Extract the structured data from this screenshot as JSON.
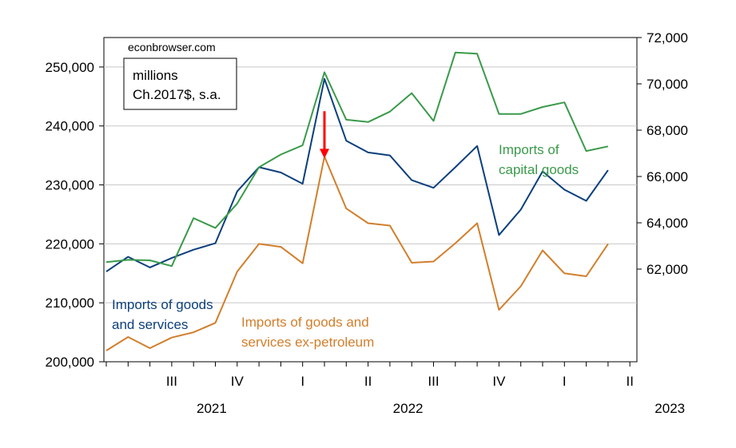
{
  "chart_data": {
    "type": "line",
    "source_note": "econbrowser.com",
    "units_box": [
      "millions",
      "Ch.2017$, s.a."
    ],
    "x": [
      "2021-05",
      "2021-06",
      "2021-07",
      "2021-08",
      "2021-09",
      "2021-10",
      "2021-11",
      "2021-12",
      "2022-01",
      "2022-02",
      "2022-03",
      "2022-04",
      "2022-05",
      "2022-06",
      "2022-07",
      "2022-08",
      "2022-09",
      "2022-10",
      "2022-11",
      "2022-12",
      "2023-01",
      "2023-02",
      "2023-03",
      "2023-04"
    ],
    "quarter_ticks": [
      {
        "label": "III",
        "month": "2021-08"
      },
      {
        "label": "IV",
        "month": "2021-11"
      },
      {
        "label": "I",
        "month": "2022-02"
      },
      {
        "label": "II",
        "month": "2022-05"
      },
      {
        "label": "III",
        "month": "2022-08"
      },
      {
        "label": "IV",
        "month": "2022-11"
      },
      {
        "label": "I",
        "month": "2023-02"
      },
      {
        "label": "II",
        "month": "2023-05"
      }
    ],
    "year_labels": [
      {
        "label": "2021",
        "month": "2021-08"
      },
      {
        "label": "2022",
        "month": "2022-05"
      },
      {
        "label": "2023",
        "month": "2023-05"
      }
    ],
    "left_axis": {
      "min": 200000,
      "max": 255000,
      "ticks": [
        "200,000",
        "210,000",
        "220,000",
        "230,000",
        "240,000",
        "250,000"
      ],
      "tick_values": [
        200000,
        210000,
        220000,
        230000,
        240000,
        250000
      ]
    },
    "right_axis": {
      "min": 58000,
      "max": 72000,
      "ticks": [
        "62,000",
        "64,000",
        "66,000",
        "68,000",
        "70,000",
        "72,000"
      ],
      "tick_values": [
        62000,
        64000,
        66000,
        68000,
        70000,
        72000
      ]
    },
    "series": [
      {
        "name": "Imports of goods and services",
        "label_lines": [
          "Imports of goods",
          "and services"
        ],
        "axis": "left",
        "color": "#0b3f7c",
        "values": [
          215300,
          217800,
          216000,
          217600,
          219000,
          220100,
          228900,
          233000,
          232100,
          230200,
          248000,
          237500,
          235500,
          235000,
          230800,
          229500,
          233000,
          236600,
          221500,
          225800,
          232300,
          229200,
          227300,
          232500
        ]
      },
      {
        "name": "Imports of goods and services ex-petroleum",
        "label_lines": [
          "Imports of goods and",
          "services ex-petroleum"
        ],
        "axis": "left",
        "color": "#d17f2c",
        "values": [
          201900,
          204200,
          202300,
          204100,
          205000,
          206600,
          215300,
          220000,
          219500,
          216700,
          234800,
          226000,
          223500,
          223100,
          216800,
          217000,
          220100,
          223500,
          208800,
          212800,
          218900,
          215000,
          214500,
          220000
        ]
      },
      {
        "name": "Imports of capital goods",
        "label_lines": [
          "Imports of",
          "capital goods"
        ],
        "axis": "right",
        "color": "#3a9a4a",
        "values": [
          62300,
          62400,
          62380,
          62130,
          64200,
          63780,
          64830,
          66400,
          66950,
          67350,
          70500,
          68450,
          68350,
          68800,
          69600,
          68400,
          71350,
          71300,
          68700,
          68700,
          69000,
          69200,
          67100,
          67300
        ]
      }
    ],
    "annotation": {
      "type": "arrow",
      "color": "#ff0000",
      "month": "2022-03",
      "from_value": 242500,
      "to_value": 234500,
      "axis": "left"
    },
    "grid": "horizontal",
    "legend": "inline-labels"
  }
}
